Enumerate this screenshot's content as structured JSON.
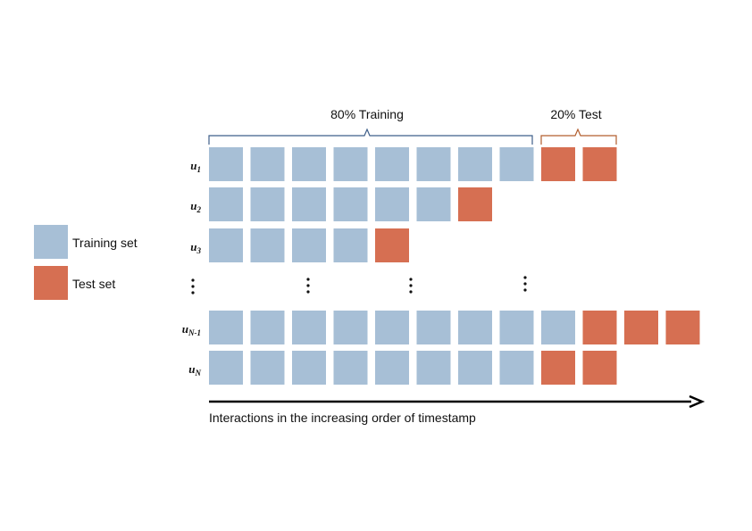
{
  "colors": {
    "train": "#a7bfd6",
    "test": "#d66f52",
    "train_brace": "#3f5f8a",
    "test_brace": "#b25e2e",
    "arrow": "#000000"
  },
  "legend": {
    "training_label": "Training set",
    "test_label": "Test set"
  },
  "split": {
    "training_label": "80% Training",
    "test_label": "20% Test"
  },
  "axis": {
    "label": "Interactions in the increasing order of timestamp"
  },
  "rows": [
    {
      "base": "u",
      "sub": "1",
      "train": 8,
      "test": 2
    },
    {
      "base": "u",
      "sub": "2",
      "train": 6,
      "test": 1
    },
    {
      "base": "u",
      "sub": "3",
      "train": 4,
      "test": 1
    },
    {
      "base": "u",
      "sub": "N-1",
      "train": 9,
      "test": 3
    },
    {
      "base": "u",
      "sub": "N",
      "train": 8,
      "test": 2
    }
  ]
}
